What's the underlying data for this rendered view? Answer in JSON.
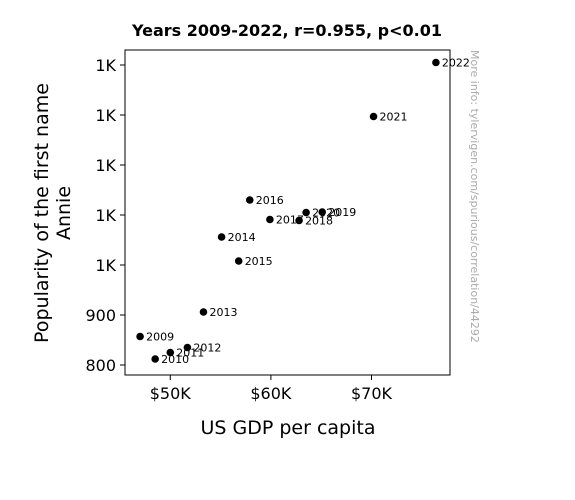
{
  "chart_data": {
    "type": "scatter",
    "title": "Years 2009-2022, r=0.955, p<0.01",
    "xlabel": "US GDP per capita",
    "ylabel": [
      "Popularity of the first name",
      "Annie"
    ],
    "xlim": [
      45500,
      77800
    ],
    "ylim": [
      780,
      1430
    ],
    "x_ticks": [
      {
        "value": 50000,
        "label": "$50K"
      },
      {
        "value": 60000,
        "label": "$60K"
      },
      {
        "value": 70000,
        "label": "$70K"
      }
    ],
    "y_ticks": [
      {
        "value": 800,
        "label": "800"
      },
      {
        "value": 900,
        "label": "900"
      },
      {
        "value": 1000,
        "label": "1K"
      },
      {
        "value": 1100,
        "label": "1K"
      },
      {
        "value": 1200,
        "label": "1K"
      },
      {
        "value": 1300,
        "label": "1K"
      },
      {
        "value": 1400,
        "label": "1K"
      }
    ],
    "grid": false,
    "points": [
      {
        "label": "2009",
        "x": 47000,
        "y": 857
      },
      {
        "label": "2010",
        "x": 48500,
        "y": 812
      },
      {
        "label": "2011",
        "x": 50000,
        "y": 825
      },
      {
        "label": "2012",
        "x": 51700,
        "y": 835
      },
      {
        "label": "2013",
        "x": 53300,
        "y": 906
      },
      {
        "label": "2014",
        "x": 55100,
        "y": 1056
      },
      {
        "label": "2015",
        "x": 56800,
        "y": 1008
      },
      {
        "label": "2016",
        "x": 57900,
        "y": 1130
      },
      {
        "label": "2017",
        "x": 59900,
        "y": 1091
      },
      {
        "label": "2018",
        "x": 62800,
        "y": 1089
      },
      {
        "label": "2019",
        "x": 65100,
        "y": 1106
      },
      {
        "label": "2020",
        "x": 63500,
        "y": 1105
      },
      {
        "label": "2021",
        "x": 70200,
        "y": 1297
      },
      {
        "label": "2022",
        "x": 76400,
        "y": 1405
      }
    ]
  },
  "watermark": "More info: tylervigen.com/spurious/correlation/44292"
}
